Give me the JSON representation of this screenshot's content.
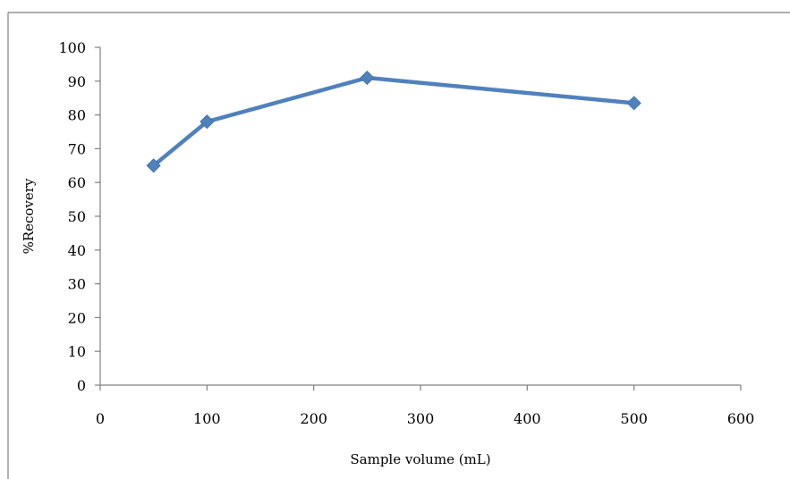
{
  "chart_data": {
    "type": "line",
    "title": "",
    "xlabel": "Sample volume (mL)",
    "ylabel": "%Recovery",
    "xlim": [
      0,
      600
    ],
    "ylim": [
      0,
      100
    ],
    "x_ticks": [
      0,
      100,
      200,
      300,
      400,
      500,
      600
    ],
    "y_ticks": [
      0,
      10,
      20,
      30,
      40,
      50,
      60,
      70,
      80,
      90,
      100
    ],
    "grid": false,
    "legend": "none",
    "series": [
      {
        "color": "#4f81bd",
        "marker": "diamond",
        "x": [
          50,
          100,
          250,
          500
        ],
        "y": [
          65,
          78,
          91,
          83.5
        ]
      }
    ]
  }
}
